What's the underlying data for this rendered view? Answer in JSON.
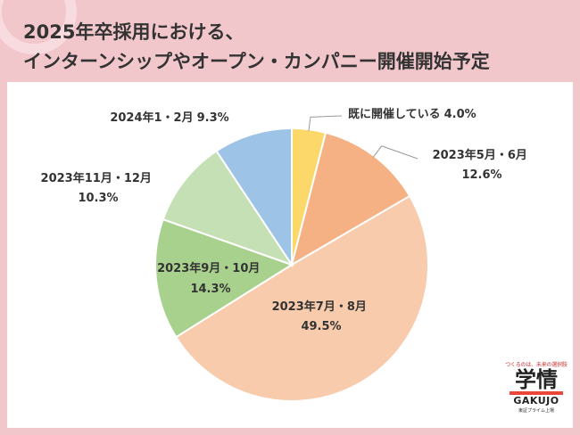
{
  "title": {
    "line1": "2025年卒採用における、",
    "line2": "インターンシップやオープン・カンパニー開催開始予定"
  },
  "logo": {
    "tagline": "つくるのは、未来の選択肢",
    "main": "学情",
    "name": "GAKUJO",
    "sub": "東証プライム上場"
  },
  "chart_data": {
    "type": "pie",
    "start": "12 o'clock",
    "direction": "clockwise",
    "slices": [
      {
        "label": "既に開催している",
        "value": 4.0,
        "display": "4.0%",
        "color": "#fcd86a"
      },
      {
        "label": "2023年5月・6月",
        "value": 12.6,
        "display": "12.6%",
        "color": "#f5b183"
      },
      {
        "label": "2023年7月・8月",
        "value": 49.5,
        "display": "49.5%",
        "color": "#f8cbad"
      },
      {
        "label": "2023年9月・10月",
        "value": 14.3,
        "display": "14.3%",
        "color": "#a9d18e"
      },
      {
        "label": "2023年11月・12月",
        "value": 10.3,
        "display": "10.3%",
        "color": "#c5e0b4"
      },
      {
        "label": "2024年1・2月",
        "value": 9.3,
        "display": "9.3%",
        "color": "#9dc3e6"
      }
    ]
  }
}
